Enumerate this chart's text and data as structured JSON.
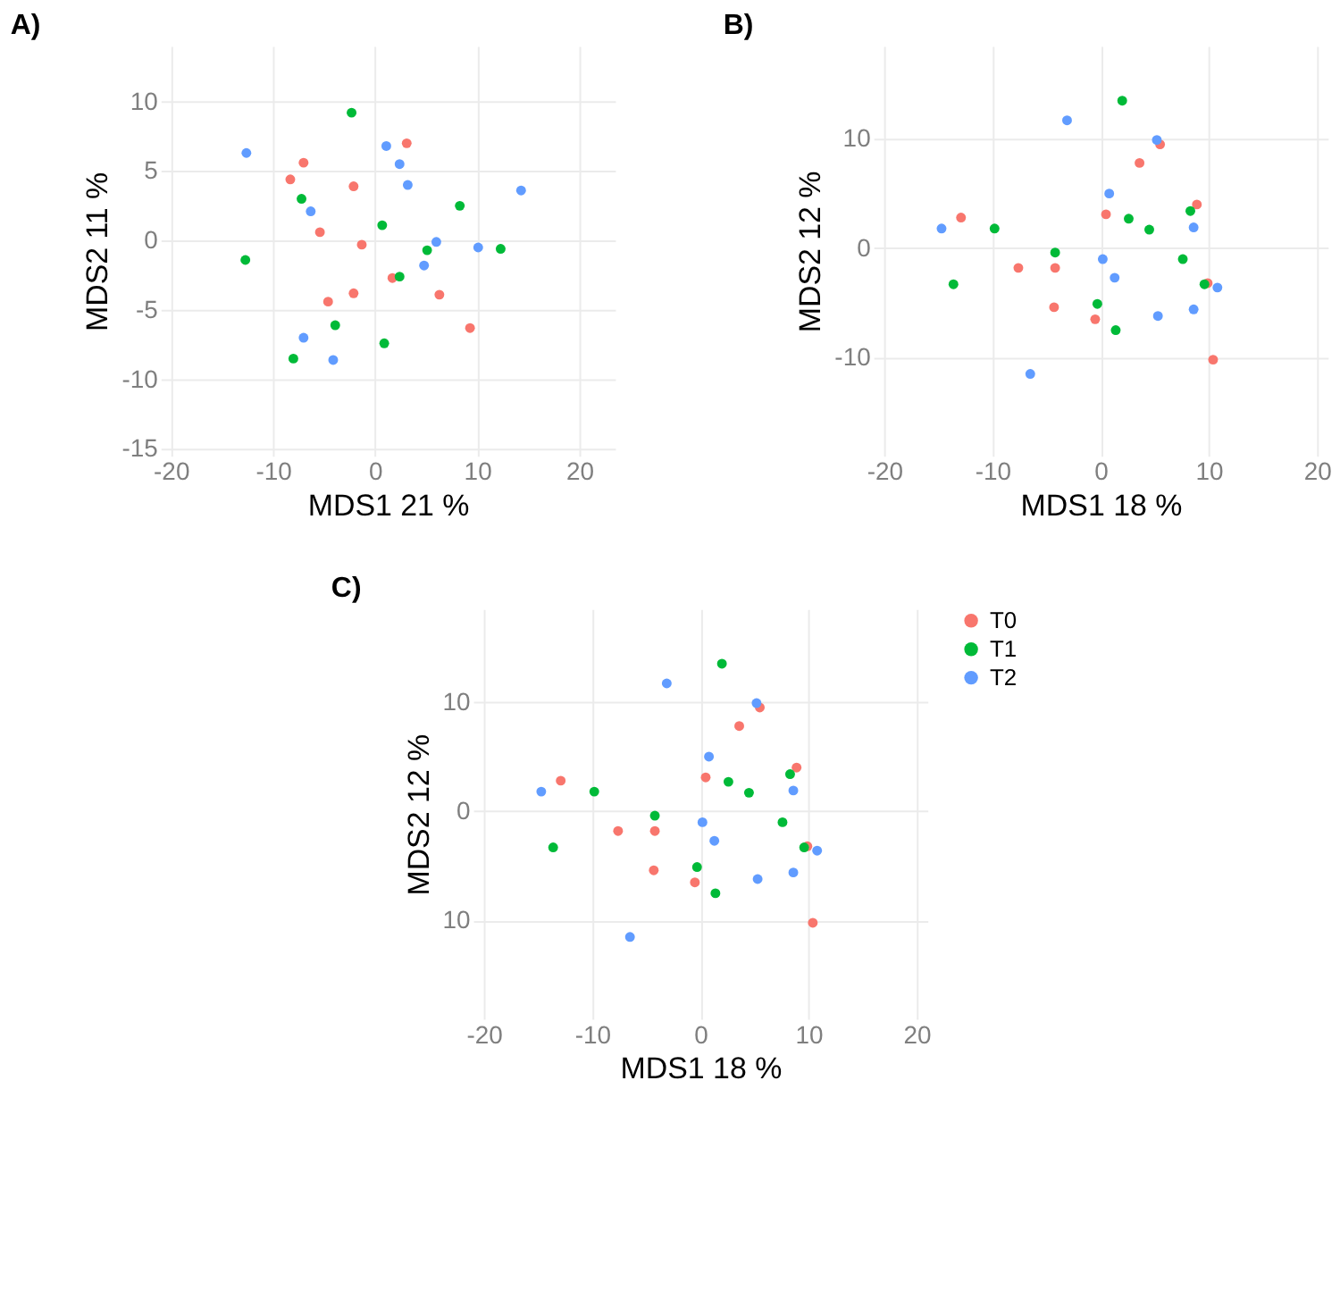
{
  "chart_data": [
    {
      "type": "scatter",
      "title": "A)",
      "xlabel": "MDS1 21 %",
      "ylabel": "MDS2 11 %",
      "xlim": [
        -21,
        23.5
      ],
      "ylim": [
        -15.5,
        14
      ],
      "xticks": [
        -20,
        -10,
        0,
        10,
        20
      ],
      "yticks": [
        -15,
        -10,
        -5,
        0,
        5,
        10
      ],
      "grid": true,
      "marker": "circle",
      "series": [
        {
          "color": "#f8766d",
          "x": [
            -7.0,
            -8.3,
            -2.1,
            3.1,
            -5.4,
            -1.3,
            1.7,
            -2.1,
            -4.6,
            6.3,
            9.3
          ],
          "values": [
            5.6,
            4.4,
            3.9,
            7.0,
            0.6,
            -0.3,
            -2.7,
            -3.8,
            -4.4,
            -3.9,
            -6.3
          ]
        },
        {
          "color": "#00ba38",
          "x": [
            -2.3,
            -7.2,
            8.3,
            0.7,
            -12.7,
            5.1,
            12.3,
            2.4,
            -3.9,
            0.9,
            -8.0
          ],
          "values": [
            9.2,
            3.0,
            2.5,
            1.1,
            -1.4,
            -0.7,
            -0.6,
            -2.6,
            -6.1,
            -7.4,
            -8.5
          ]
        },
        {
          "color": "#619cff",
          "x": [
            -12.6,
            1.1,
            2.4,
            3.2,
            14.3,
            -6.3,
            6.0,
            10.1,
            4.8,
            -7.0,
            -4.1
          ],
          "values": [
            6.3,
            6.8,
            5.5,
            4.0,
            3.6,
            2.1,
            -0.1,
            -0.5,
            -1.8,
            -7.0,
            -8.6
          ]
        }
      ]
    },
    {
      "type": "scatter",
      "title": "B)",
      "xlabel": "MDS1 18 %",
      "ylabel": "MDS2 12 %",
      "xlim": [
        -21,
        21
      ],
      "ylim": [
        -19,
        18.5
      ],
      "xticks": [
        -20,
        -10,
        0,
        10,
        20
      ],
      "yticks": [
        -10,
        0,
        10
      ],
      "grid": true,
      "marker": "circle",
      "series": [
        {
          "color": "#f8766d",
          "x": [
            -12.9,
            -7.6,
            -4.2,
            -4.3,
            -0.5,
            0.5,
            3.6,
            5.5,
            8.9,
            9.9,
            10.4
          ],
          "values": [
            2.8,
            -1.8,
            -1.8,
            -5.4,
            -6.5,
            3.1,
            7.8,
            9.5,
            4.0,
            -3.2,
            -10.2
          ]
        },
        {
          "color": "#00ba38",
          "x": [
            2.0,
            -9.8,
            -13.6,
            -4.2,
            -0.3,
            1.4,
            2.6,
            4.5,
            8.3,
            7.6,
            9.6
          ],
          "values": [
            13.5,
            1.8,
            -3.3,
            -0.4,
            -5.1,
            -7.5,
            2.7,
            1.7,
            3.4,
            -1.0,
            -3.3
          ]
        },
        {
          "color": "#619cff",
          "x": [
            -3.1,
            5.2,
            0.8,
            -14.7,
            0.2,
            1.3,
            8.6,
            10.8,
            8.6,
            5.3,
            -6.5
          ],
          "values": [
            11.7,
            9.9,
            5.0,
            1.8,
            -1.0,
            -2.7,
            1.9,
            -3.6,
            -5.6,
            -6.2,
            -11.5
          ]
        }
      ]
    },
    {
      "type": "scatter",
      "title": "C)",
      "xlabel": "MDS1 18 %",
      "ylabel": "MDS2 12 %",
      "xlim": [
        -21,
        21
      ],
      "ylim": [
        -19,
        18.5
      ],
      "xticks": [
        -20,
        -10,
        0,
        10,
        20
      ],
      "yticks": [
        {
          "value": -10,
          "label": "10"
        },
        0,
        10
      ],
      "grid": true,
      "marker": "circle",
      "legend": "right",
      "series": [
        {
          "name": "T0",
          "color": "#f8766d",
          "x": [
            -12.9,
            -7.6,
            -4.2,
            -4.3,
            -0.5,
            0.5,
            3.6,
            5.5,
            8.9,
            9.9,
            10.4
          ],
          "values": [
            2.8,
            -1.8,
            -1.8,
            -5.4,
            -6.5,
            3.1,
            7.8,
            9.5,
            4.0,
            -3.2,
            -10.2
          ]
        },
        {
          "name": "T1",
          "color": "#00ba38",
          "x": [
            2.0,
            -9.8,
            -13.6,
            -4.2,
            -0.3,
            1.4,
            2.6,
            4.5,
            8.3,
            7.6,
            9.6
          ],
          "values": [
            13.5,
            1.8,
            -3.3,
            -0.4,
            -5.1,
            -7.5,
            2.7,
            1.7,
            3.4,
            -1.0,
            -3.3
          ]
        },
        {
          "name": "T2",
          "color": "#619cff",
          "x": [
            -3.1,
            5.2,
            0.8,
            -14.7,
            0.2,
            1.3,
            8.6,
            10.8,
            8.6,
            5.3,
            -6.5
          ],
          "values": [
            11.7,
            9.9,
            5.0,
            1.8,
            -1.0,
            -2.7,
            1.9,
            -3.6,
            -5.6,
            -6.2,
            -11.5
          ]
        }
      ]
    }
  ]
}
